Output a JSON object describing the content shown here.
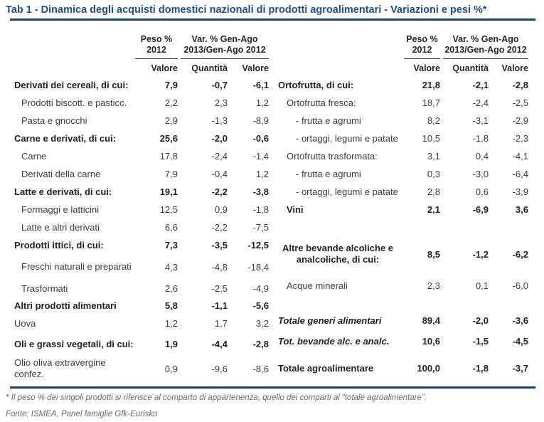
{
  "title": "Tab 1 - Dinamica degli acquisti domestici nazionali di prodotti agroalimentari - Variazioni e pesi %*",
  "colors": {
    "accent_blue": "#1f4e8a",
    "divider_blue": "#1c4070",
    "text_dark": "#222222",
    "text_body": "#3d3d3d",
    "muted_gray": "#5f6b76"
  },
  "column_headers": {
    "peso_line1": "Peso %",
    "peso_line2": "2012",
    "var_line1": "Var. % Gen-Ago",
    "var_line2": "2013/Gen-Ago 2012",
    "sub_value": "Valore",
    "sub_quantity": "Quantità",
    "sub_value2": "Valore"
  },
  "tables": {
    "left": {
      "rows": [
        {
          "label": "Derivati dei cereali, di cui:",
          "peso": "7,9",
          "quantita": "-0,7",
          "valore": "-6,1",
          "style": "bold"
        },
        {
          "label": "Prodotti biscott. e pasticc.",
          "peso": "2,2",
          "quantita": "2,3",
          "valore": "1,2",
          "style": "item"
        },
        {
          "label": "Pasta e gnocchi",
          "peso": "2,9",
          "quantita": "-1,3",
          "valore": "-8,9",
          "style": "item"
        },
        {
          "label": "Carne e derivati, di cui:",
          "peso": "25,6",
          "quantita": "-2,0",
          "valore": "-0,6",
          "style": "bold"
        },
        {
          "label": "Carne",
          "peso": "17,8",
          "quantita": "-2,4",
          "valore": "-1,4",
          "style": "item"
        },
        {
          "label": "Derivati della carne",
          "peso": "7,9",
          "quantita": "-0,4",
          "valore": "1,2",
          "style": "item"
        },
        {
          "label": "Latte e derivati, di cui:",
          "peso": "19,1",
          "quantita": "-2,2",
          "valore": "-3,8",
          "style": "bold"
        },
        {
          "label": "Formaggi e latticini",
          "peso": "12,5",
          "quantita": "0,9",
          "valore": "-1,8",
          "style": "item"
        },
        {
          "label": "Latte e altri derivati",
          "peso": "6,6",
          "quantita": "-2,2",
          "valore": "-7,5",
          "style": "item"
        },
        {
          "label": "Prodotti ittici, di cui:",
          "peso": "7,3",
          "quantita": "-3,5",
          "valore": "-12,5",
          "style": "bold"
        },
        {
          "label": "Freschi naturali e preparati",
          "peso": "4,3",
          "quantita": "-4,8",
          "valore": "-18,4",
          "style": "item wrap h36"
        },
        {
          "label": "Trasformati",
          "peso": "2,6",
          "quantita": "-2,5",
          "valore": "-4,9",
          "style": "item h24"
        },
        {
          "label": "Altri prodotti alimentari",
          "peso": "5,8",
          "quantita": "-1,1",
          "valore": "-5,6",
          "style": "bold"
        },
        {
          "label": "Uova",
          "peso": "1,2",
          "quantita": "1,7",
          "valore": "3,2",
          "style": "plain"
        },
        {
          "label": "Oli e grassi vegetali, di cui:",
          "peso": "1,9",
          "quantita": "-4,4",
          "valore": "-2,8",
          "style": "bold h32"
        },
        {
          "label": "Olio oliva extravergine confez.",
          "peso": "0,9",
          "quantita": "-9,6",
          "valore": "-8,6",
          "style": "plain wrap h38"
        }
      ]
    },
    "right": {
      "rows": [
        {
          "label": "Ortofrutta, di cui:",
          "peso": "21,8",
          "quantita": "-2,1",
          "valore": "-2,8",
          "style": "bold"
        },
        {
          "label": "Ortofrutta fresca:",
          "peso": "18,7",
          "quantita": "-2,4",
          "valore": "-2,5",
          "style": "item"
        },
        {
          "label": "- frutta e agrumi",
          "peso": "8,2",
          "quantita": "-3,1",
          "valore": "-2,9",
          "style": "dash"
        },
        {
          "label": "- ortaggi, legumi e patate",
          "peso": "10,5",
          "quantita": "-1,8",
          "valore": "-2,3",
          "style": "dash"
        },
        {
          "label": "Ortofrutta trasformata:",
          "peso": "3,1",
          "quantita": "0,4",
          "valore": "-4,1",
          "style": "item"
        },
        {
          "label": "- frutta e agrumi",
          "peso": "0,3",
          "quantita": "-3,0",
          "valore": "-6,4",
          "style": "dash"
        },
        {
          "label": "- ortaggi, legumi e patate",
          "peso": "2,8",
          "quantita": "0,6",
          "valore": "-3,9",
          "style": "dash"
        },
        {
          "label": "Vini",
          "peso": "2,1",
          "quantita": "-6,9",
          "valore": "3,6",
          "style": "bold item"
        },
        {
          "label": "Altre bevande alcoliche e analcoliche, di cui:",
          "peso": "8,5",
          "quantita": "-1,2",
          "valore": "-6,2",
          "style": "bold item wrap center gap28 h44"
        },
        {
          "label": "Acque minerali",
          "peso": "2,3",
          "quantita": "0,1",
          "valore": "-6,0",
          "style": "item gap10"
        },
        {
          "label": "Totale generi alimentari",
          "peso": "89,4",
          "quantita": "-2,0",
          "valore": "-3,6",
          "style": "totali gap22 h28"
        },
        {
          "label": "Tot. bevande alc. e analc.",
          "peso": "10,6",
          "quantita": "-1,5",
          "valore": "-4,5",
          "style": "totali h30"
        },
        {
          "label": "Totale agroalimentare",
          "peso": "100,0",
          "quantita": "-1,8",
          "valore": "-3,7",
          "style": "bold gap8 h30"
        }
      ]
    }
  },
  "footnote": "* Il peso % dei singoli prodotti si riferisce al comparto di appartenenza, quello dei comparti al “totale agroalimentare”.",
  "source": "Fonte: ISMEA, Panel famiglie Gfk-Eurisko"
}
